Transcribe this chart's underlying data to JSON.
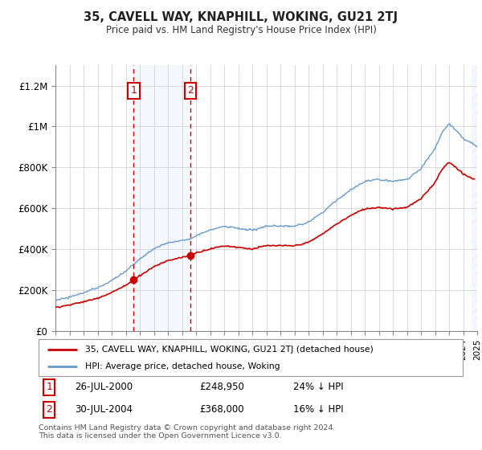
{
  "title": "35, CAVELL WAY, KNAPHILL, WOKING, GU21 2TJ",
  "subtitle": "Price paid vs. HM Land Registry's House Price Index (HPI)",
  "legend_line1": "35, CAVELL WAY, KNAPHILL, WOKING, GU21 2TJ (detached house)",
  "legend_line2": "HPI: Average price, detached house, Woking",
  "sale1_label": "1",
  "sale1_date": "26-JUL-2000",
  "sale1_price": "£248,950",
  "sale1_pct": "24% ↓ HPI",
  "sale2_label": "2",
  "sale2_date": "30-JUL-2004",
  "sale2_price": "£368,000",
  "sale2_pct": "16% ↓ HPI",
  "footer": "Contains HM Land Registry data © Crown copyright and database right 2024.\nThis data is licensed under the Open Government Licence v3.0.",
  "ylim": [
    0,
    1300000
  ],
  "yticks": [
    0,
    200000,
    400000,
    600000,
    800000,
    1000000,
    1200000
  ],
  "ytick_labels": [
    "£0",
    "£200K",
    "£400K",
    "£600K",
    "£800K",
    "£1M",
    "£1.2M"
  ],
  "sale1_year": 2000.57,
  "sale1_value": 248950,
  "sale2_year": 2004.58,
  "sale2_value": 368000,
  "red_color": "#cc0000",
  "blue_color": "#6699cc",
  "shade_color": "#ddeeff",
  "marker_box_color": "#cc0000",
  "background_color": "#ffffff",
  "grid_color": "#cccccc"
}
